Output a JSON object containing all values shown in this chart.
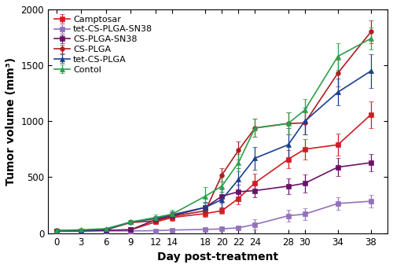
{
  "days": [
    0,
    3,
    6,
    9,
    12,
    14,
    18,
    20,
    22,
    24,
    28,
    30,
    34,
    38
  ],
  "series": [
    {
      "label": "Camptosar",
      "color": "#d41c23",
      "marker": "s",
      "y": [
        20,
        20,
        25,
        30,
        100,
        140,
        175,
        200,
        310,
        450,
        660,
        750,
        790,
        1060
      ],
      "yerr": [
        5,
        5,
        8,
        10,
        20,
        30,
        30,
        30,
        50,
        80,
        80,
        90,
        100,
        120
      ]
    },
    {
      "label": "tet-CS-PLGA-SN38",
      "color": "#9370bb",
      "marker": "s",
      "y": [
        20,
        20,
        20,
        20,
        22,
        28,
        33,
        38,
        48,
        78,
        155,
        170,
        265,
        285
      ],
      "yerr": [
        4,
        4,
        4,
        4,
        8,
        8,
        8,
        8,
        12,
        45,
        55,
        55,
        55,
        55
      ]
    },
    {
      "label": "CS-PLGA-SN38",
      "color": "#6b1268",
      "marker": "s",
      "y": [
        20,
        20,
        25,
        30,
        120,
        155,
        230,
        330,
        370,
        380,
        420,
        445,
        590,
        630
      ],
      "yerr": [
        5,
        5,
        8,
        10,
        25,
        30,
        40,
        60,
        60,
        60,
        70,
        80,
        80,
        80
      ]
    },
    {
      "label": "CS-PLGA",
      "color": "#b01c20",
      "marker": "o",
      "y": [
        25,
        25,
        30,
        95,
        110,
        150,
        200,
        520,
        740,
        940,
        980,
        985,
        1430,
        1800
      ],
      "yerr": [
        5,
        5,
        8,
        15,
        20,
        30,
        40,
        60,
        80,
        80,
        100,
        100,
        120,
        100
      ]
    },
    {
      "label": "tet-CS-PLGA",
      "color": "#1a3f8f",
      "marker": "^",
      "y": [
        25,
        25,
        30,
        100,
        130,
        165,
        230,
        300,
        480,
        670,
        790,
        1000,
        1260,
        1450
      ],
      "yerr": [
        5,
        5,
        8,
        15,
        20,
        30,
        50,
        70,
        100,
        100,
        150,
        120,
        120,
        150
      ]
    },
    {
      "label": "Contol",
      "color": "#2ca049",
      "marker": "^",
      "y": [
        25,
        30,
        40,
        100,
        140,
        170,
        330,
        420,
        630,
        940,
        980,
        1100,
        1580,
        1740
      ],
      "yerr": [
        5,
        5,
        8,
        15,
        25,
        35,
        80,
        80,
        80,
        80,
        100,
        100,
        120,
        100
      ]
    }
  ],
  "xlabel": "Day post-treatment",
  "ylabel": "Tumor volume (mm³)",
  "xlim": [
    -1,
    40
  ],
  "ylim": [
    0,
    2000
  ],
  "xticks": [
    0,
    3,
    6,
    9,
    12,
    14,
    18,
    20,
    22,
    24,
    28,
    30,
    34,
    38
  ],
  "yticks": [
    0,
    500,
    1000,
    1500,
    2000
  ],
  "background_color": "#ffffff",
  "axis_fontsize": 10,
  "tick_fontsize": 8.5,
  "legend_fontsize": 8.0
}
